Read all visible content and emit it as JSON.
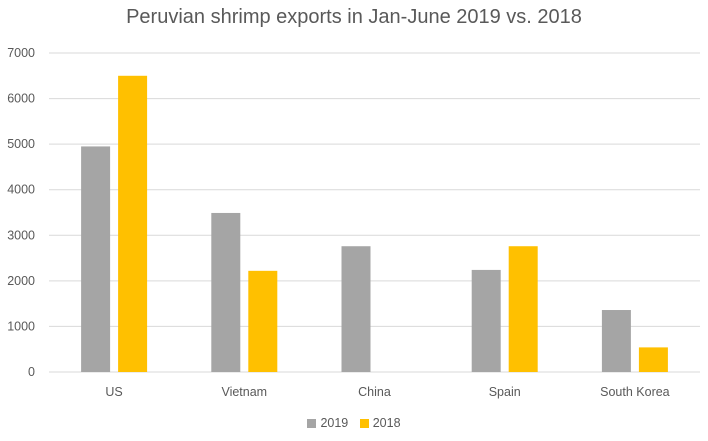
{
  "chart_data": {
    "type": "bar",
    "title": "Peruvian shrimp exports in Jan-June 2019 vs. 2018",
    "categories": [
      "US",
      "Vietnam",
      "China",
      "Spain",
      "South Korea"
    ],
    "series": [
      {
        "name": "2019",
        "color": "#a5a5a5",
        "values": [
          4950,
          3490,
          2760,
          2240,
          1360
        ]
      },
      {
        "name": "2018",
        "color": "#ffc000",
        "values": [
          6500,
          2220,
          0,
          2760,
          540
        ]
      }
    ],
    "ylim": [
      0,
      7000
    ],
    "yticks": [
      "0",
      "1000",
      "2000",
      "3000",
      "4000",
      "5000",
      "6000",
      "7000"
    ],
    "xlabel": "",
    "ylabel": "",
    "grid": true,
    "legend_position": "bottom"
  }
}
